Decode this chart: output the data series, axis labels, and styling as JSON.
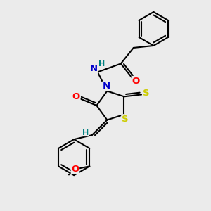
{
  "bg_color": "#ebebeb",
  "bond_color": "#000000",
  "bond_lw": 1.5,
  "atom_colors": {
    "N": "#0000cc",
    "S": "#cccc00",
    "O": "#ff0000",
    "H": "#008080",
    "C": "#000000"
  },
  "font_size_atom": 9.5,
  "font_size_small": 8.0
}
